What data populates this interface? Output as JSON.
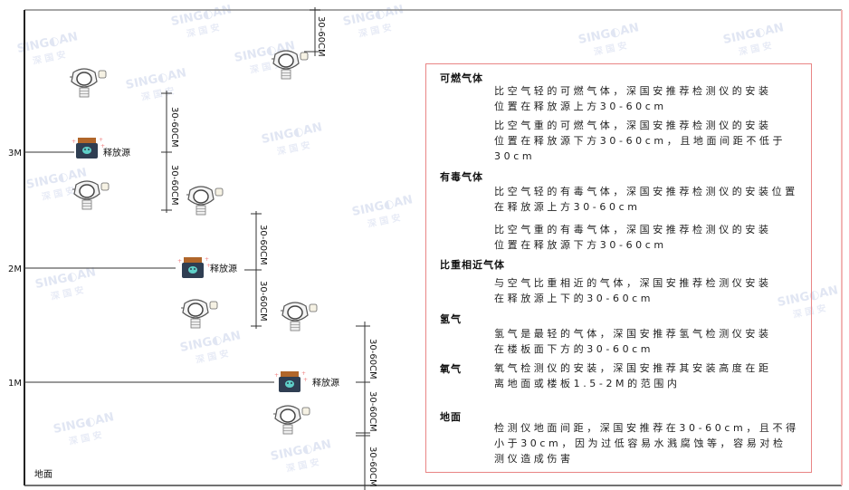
{
  "watermark": {
    "brand": "SINGOAN",
    "cn": "深国安"
  },
  "levels": [
    {
      "label": "3M"
    },
    {
      "label": "2M"
    },
    {
      "label": "1M"
    }
  ],
  "ground_label": "地面",
  "source_label": "释放源",
  "dimension_label": "30-60CM",
  "legend": {
    "sections": [
      {
        "title": "可燃气体",
        "paragraphs": [
          [
            "比空气轻的可燃气体，深国安推荐检测仪的安装",
            "位置在释放源上方30-60cm"
          ],
          [
            "比空气重的可燃气体，深国安推荐检测仪的安装",
            "位置在释放源下方30-60cm，且地面间距不低于",
            "30cm"
          ]
        ]
      },
      {
        "title": "有毒气体",
        "paragraphs": [
          [
            "比空气轻的有毒气体，深国安推荐检测仪的安装位置",
            "在释放源上方30-60cm"
          ],
          [
            "比空气重的有毒气体，深国安推荐检测仪的安装",
            "位置在释放源下方30-60cm"
          ]
        ]
      },
      {
        "title": "比重相近气体",
        "paragraphs": [
          [
            "与空气比重相近的气体，深国安推荐检测仪安装",
            "在释放源上下的30-60cm"
          ]
        ]
      },
      {
        "title": "氢气",
        "paragraphs": [
          [
            "氢气是最轻的气体，深国安推荐氢气检测仪安装",
            "在楼板面下方的30-60cm"
          ]
        ]
      },
      {
        "title": "氧气",
        "paragraphs": [
          [
            "氧气检测仪的安装，深国安推荐其安装高度在距",
            "离地面或楼板1.5-2M的范围内"
          ]
        ]
      },
      {
        "title": "地面",
        "paragraphs": [
          [
            "检测仪地面间距，深国安推荐在30-60cm，且不得",
            "小于30cm，因为过低容易水溅腐蚀等，容易对检",
            "测仪造成伤害"
          ]
        ]
      }
    ]
  },
  "colors": {
    "frame": "#333333",
    "box_border": "#e98585",
    "source_body": "#2f3e52",
    "source_cap": "#b0662a",
    "source_face": "#5fd0c8",
    "watermark": "#c9d3ea"
  }
}
